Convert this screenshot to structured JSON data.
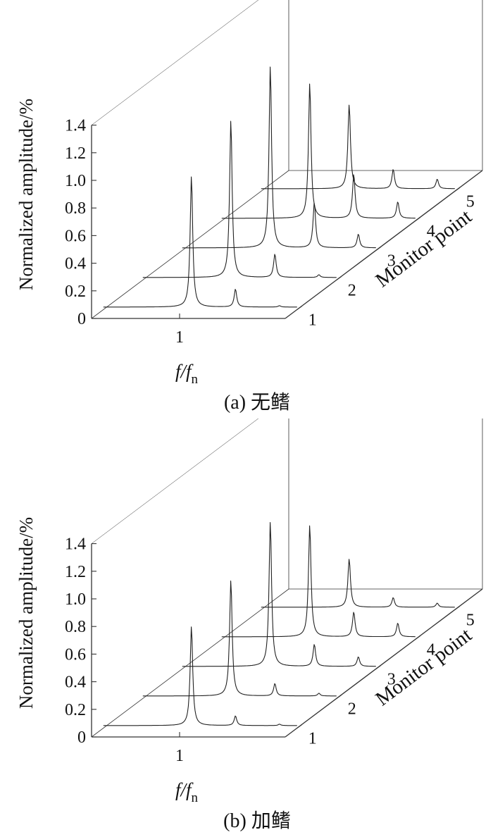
{
  "chart_data": [
    {
      "type": "line",
      "title": "",
      "caption": "(a) 无鳍",
      "xlabel_main": "f/f",
      "xlabel_sub": "n",
      "ylabel": "Normalized amplitude/%",
      "zlabel": "Monitor point",
      "ylim": [
        0,
        1.4
      ],
      "y_ticks": [
        "0",
        "0.2",
        "0.4",
        "0.6",
        "0.8",
        "1.0",
        "1.2",
        "1.4"
      ],
      "x_ticks": [
        "1"
      ],
      "x_tick_values": [
        1
      ],
      "xlim": [
        0.5,
        1.6
      ],
      "z_ticks": [
        "1",
        "2",
        "3",
        "4",
        "5"
      ],
      "series": [
        {
          "name": "1",
          "peaks": [
            {
              "x": 1.0,
              "y": 0.95
            },
            {
              "x": 1.25,
              "y": 0.13
            },
            {
              "x": 1.5,
              "y": 0.01
            }
          ]
        },
        {
          "name": "2",
          "peaks": [
            {
              "x": 1.0,
              "y": 1.14
            },
            {
              "x": 1.25,
              "y": 0.17
            },
            {
              "x": 1.5,
              "y": 0.02
            }
          ]
        },
        {
          "name": "3",
          "peaks": [
            {
              "x": 1.0,
              "y": 1.32
            },
            {
              "x": 1.25,
              "y": 0.33
            },
            {
              "x": 1.5,
              "y": 0.1
            }
          ]
        },
        {
          "name": "4",
          "peaks": [
            {
              "x": 1.0,
              "y": 0.98
            },
            {
              "x": 1.25,
              "y": 0.32
            },
            {
              "x": 1.5,
              "y": 0.12
            }
          ]
        },
        {
          "name": "5",
          "peaks": [
            {
              "x": 1.0,
              "y": 0.61
            },
            {
              "x": 1.25,
              "y": 0.14
            },
            {
              "x": 1.5,
              "y": 0.07
            }
          ]
        }
      ]
    },
    {
      "type": "line",
      "title": "",
      "caption": "(b) 加鳍",
      "xlabel_main": "f/f",
      "xlabel_sub": "n",
      "ylabel": "Normalized amplitude/%",
      "zlabel": "Monitor point",
      "ylim": [
        0,
        1.4
      ],
      "y_ticks": [
        "0",
        "0.2",
        "0.4",
        "0.6",
        "0.8",
        "1.0",
        "1.2",
        "1.4"
      ],
      "x_ticks": [
        "1"
      ],
      "x_tick_values": [
        1
      ],
      "xlim": [
        0.5,
        1.6
      ],
      "z_ticks": [
        "1",
        "2",
        "3",
        "4",
        "5"
      ],
      "series": [
        {
          "name": "1",
          "peaks": [
            {
              "x": 1.0,
              "y": 0.72
            },
            {
              "x": 1.25,
              "y": 0.07
            },
            {
              "x": 1.5,
              "y": 0.01
            }
          ]
        },
        {
          "name": "2",
          "peaks": [
            {
              "x": 1.0,
              "y": 0.84
            },
            {
              "x": 1.25,
              "y": 0.09
            },
            {
              "x": 1.5,
              "y": 0.02
            }
          ]
        },
        {
          "name": "3",
          "peaks": [
            {
              "x": 1.0,
              "y": 1.05
            },
            {
              "x": 1.25,
              "y": 0.16
            },
            {
              "x": 1.5,
              "y": 0.07
            }
          ]
        },
        {
          "name": "4",
          "peaks": [
            {
              "x": 1.0,
              "y": 0.81
            },
            {
              "x": 1.25,
              "y": 0.18
            },
            {
              "x": 1.5,
              "y": 0.1
            }
          ]
        },
        {
          "name": "5",
          "peaks": [
            {
              "x": 1.0,
              "y": 0.35
            },
            {
              "x": 1.25,
              "y": 0.07
            },
            {
              "x": 1.5,
              "y": 0.03
            }
          ]
        }
      ]
    }
  ]
}
